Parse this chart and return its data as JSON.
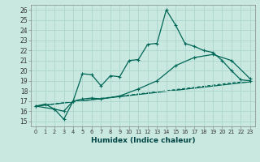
{
  "xlabel": "Humidex (Indice chaleur)",
  "xlim": [
    -0.5,
    23.5
  ],
  "ylim": [
    14.5,
    26.5
  ],
  "xticks": [
    0,
    1,
    2,
    3,
    4,
    5,
    6,
    7,
    8,
    9,
    10,
    11,
    12,
    13,
    14,
    15,
    16,
    17,
    18,
    19,
    20,
    21,
    22,
    23
  ],
  "yticks": [
    15,
    16,
    17,
    18,
    19,
    20,
    21,
    22,
    23,
    24,
    25,
    26
  ],
  "background_color": "#c8e8e0",
  "grid_color": "#b0d8d0",
  "line_color": "#006655",
  "line1_x": [
    0,
    1,
    2,
    3,
    4,
    5,
    6,
    7,
    8,
    9,
    10,
    11,
    12,
    13,
    14,
    15,
    16,
    17,
    18,
    19,
    20,
    21,
    22,
    23
  ],
  "line1_y": [
    16.5,
    16.7,
    16.2,
    15.2,
    17.0,
    19.7,
    19.6,
    18.5,
    19.5,
    19.4,
    21.0,
    21.1,
    22.6,
    22.7,
    26.0,
    24.5,
    22.7,
    22.4,
    22.0,
    21.8,
    21.0,
    20.0,
    19.1,
    19.0
  ],
  "line2_x": [
    0,
    2,
    3,
    4,
    5,
    6,
    7,
    9,
    11,
    13,
    15,
    17,
    19,
    21,
    23
  ],
  "line2_y": [
    16.5,
    16.2,
    16.0,
    17.0,
    17.2,
    17.3,
    17.2,
    17.5,
    18.2,
    19.0,
    20.5,
    21.3,
    21.6,
    21.0,
    19.2
  ],
  "line3_x": [
    0,
    23
  ],
  "line3_y": [
    16.5,
    19.0
  ],
  "line4_x": [
    0,
    23
  ],
  "line4_y": [
    16.5,
    18.9
  ]
}
